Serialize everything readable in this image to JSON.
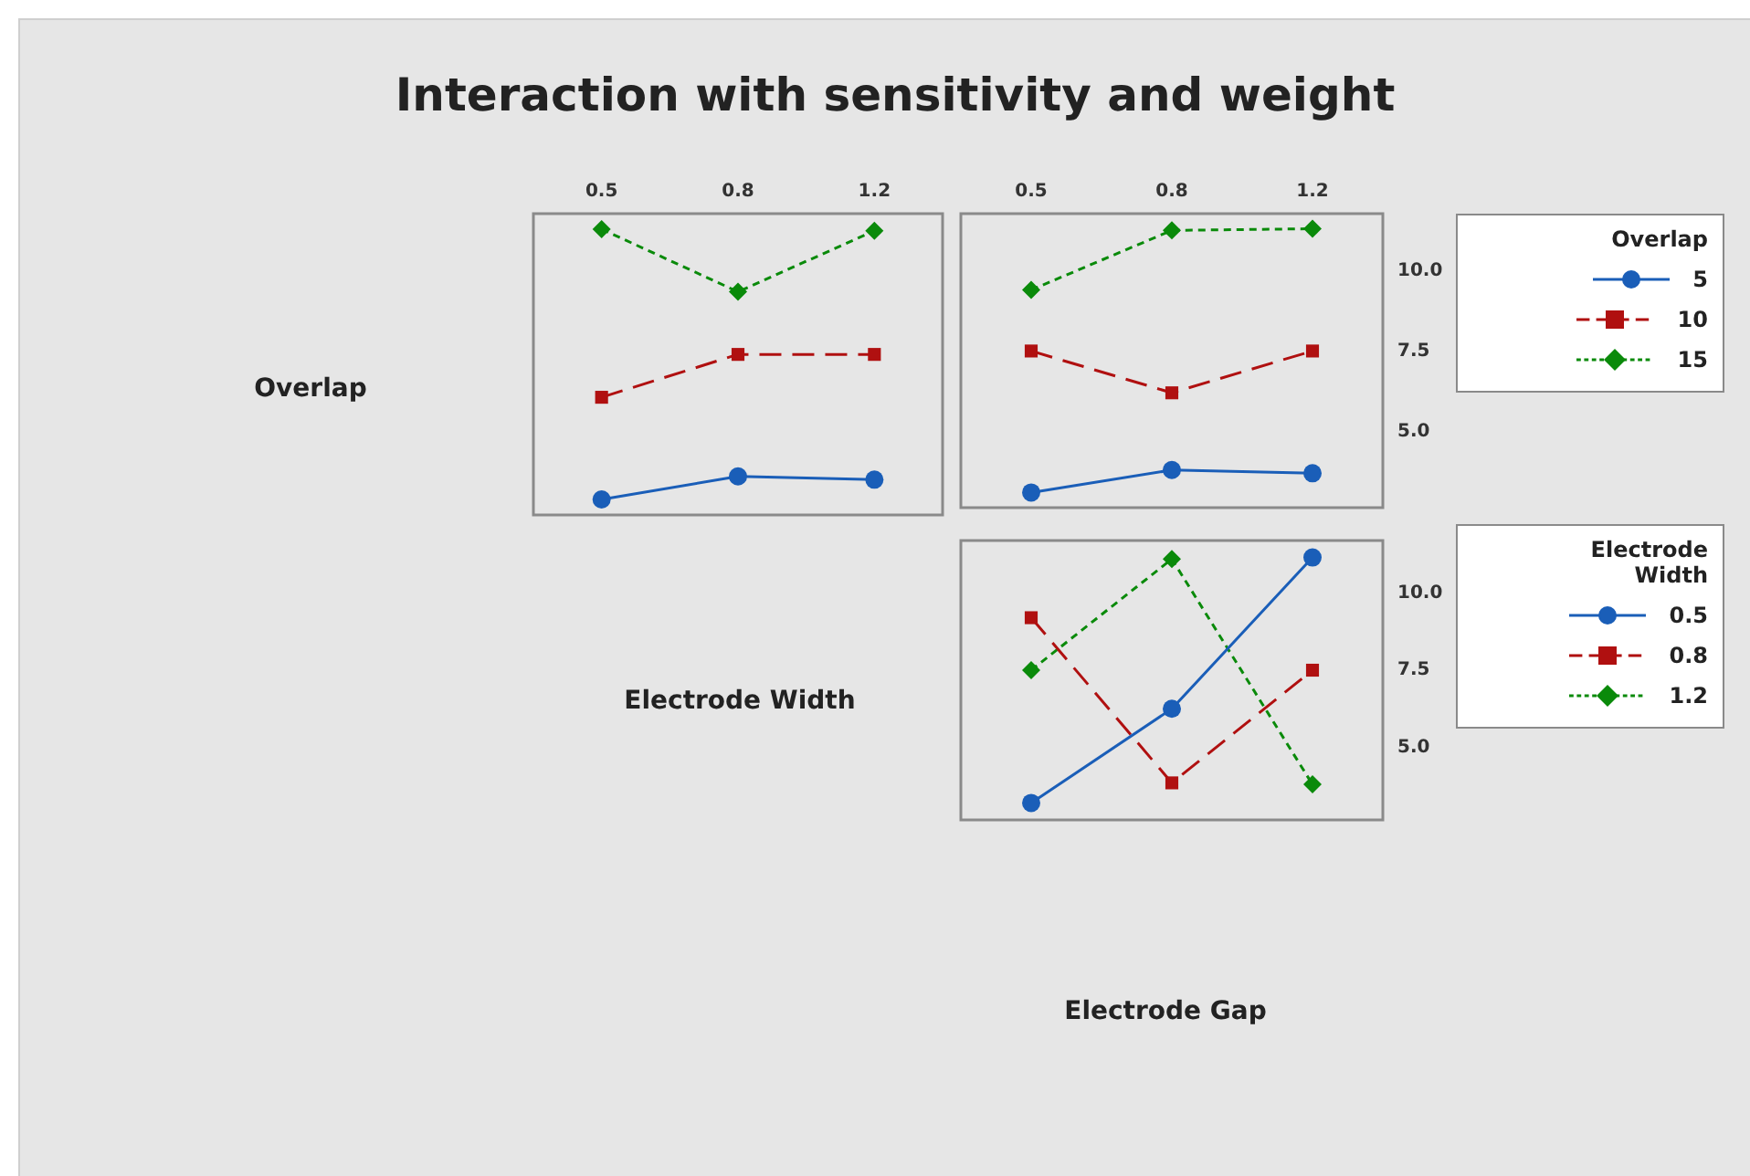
{
  "chart_data": [
    {
      "type": "line",
      "title": "Interaction with sensitivity and weight",
      "ylabel": "Overlap",
      "categories": [
        "0.5",
        "0.8",
        "1.2"
      ],
      "ylim": [
        2.63,
        11.77
      ],
      "tick_labels": "x",
      "legend": false,
      "series": [
        {
          "color": "#1a5eb8",
          "marker": "circle",
          "line_style": "solid",
          "values": [
            3.1,
            3.8,
            3.7
          ]
        },
        {
          "color": "#b01010",
          "marker": "square",
          "line_style": "dashed",
          "values": [
            6.2,
            7.5,
            7.5
          ]
        },
        {
          "color": "#0a8a0a",
          "marker": "diamond",
          "line_style": "dotted",
          "values": [
            11.3,
            9.4,
            11.25
          ]
        }
      ]
    },
    {
      "type": "line",
      "categories": [
        "0.5",
        "0.8",
        "1.2"
      ],
      "ylim": [
        2.63,
        11.77
      ],
      "yticks": [
        {
          "value": 5,
          "label": "5.0"
        },
        {
          "value": 7.5,
          "label": "7.5"
        },
        {
          "value": 10,
          "label": "10.0"
        }
      ],
      "legend": "right",
      "legend_title": "Overlap",
      "series": [
        {
          "name": "5",
          "color": "#1a5eb8",
          "marker": "circle",
          "line_style": "solid",
          "values": [
            3.1,
            3.8,
            3.7
          ]
        },
        {
          "name": "10",
          "color": "#b01010",
          "marker": "square",
          "line_style": "dashed",
          "values": [
            7.5,
            6.2,
            7.5
          ]
        },
        {
          "name": "15",
          "color": "#0a8a0a",
          "marker": "diamond",
          "line_style": "dotted",
          "values": [
            9.4,
            11.25,
            11.3
          ]
        }
      ]
    },
    {
      "type": "line",
      "ylabel": "Electrode Width",
      "xlabel": "Electrode Gap",
      "categories": [
        null,
        null,
        null
      ],
      "ylim": [
        2.65,
        11.7
      ],
      "yticks": [
        {
          "value": 5,
          "label": "5.0"
        },
        {
          "value": 7.5,
          "label": "7.5"
        },
        {
          "value": 10,
          "label": "10.0"
        }
      ],
      "tick_labels": "y",
      "legend": "right",
      "legend_title": "Electrode Width",
      "series": [
        {
          "name": "0.5",
          "color": "#1a5eb8",
          "marker": "circle",
          "line_style": "solid",
          "values": [
            3.2,
            6.25,
            11.15
          ]
        },
        {
          "name": "0.8",
          "color": "#b01010",
          "marker": "square",
          "line_style": "dashed",
          "values": [
            9.2,
            3.85,
            7.5
          ]
        },
        {
          "name": "1.2",
          "color": "#0a8a0a",
          "marker": "diamond",
          "line_style": "dotted",
          "values": [
            7.5,
            11.1,
            3.8
          ]
        }
      ]
    }
  ]
}
